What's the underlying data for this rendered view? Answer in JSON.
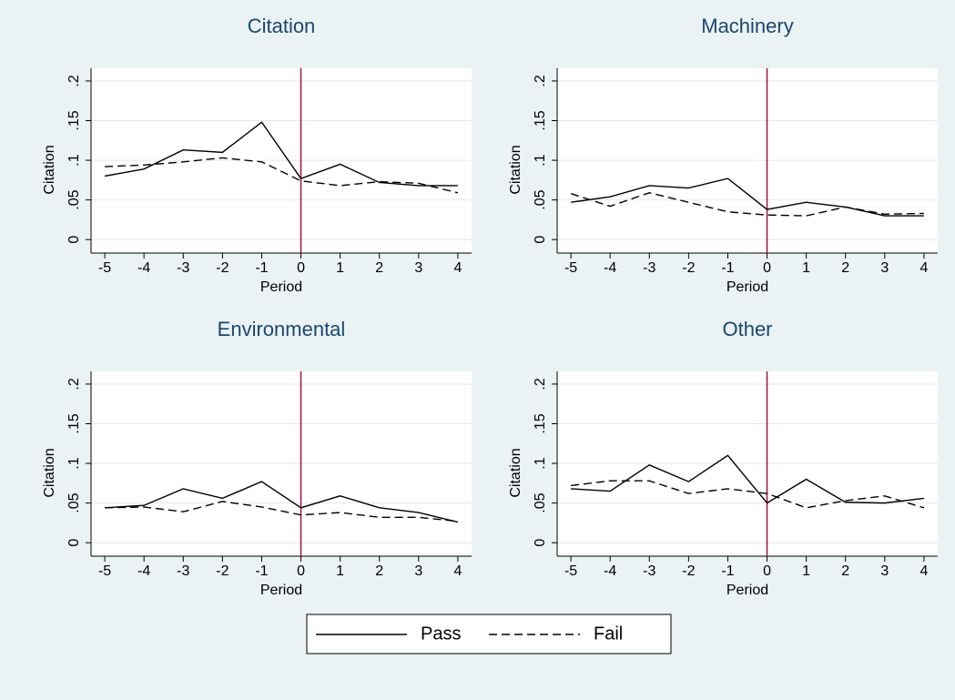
{
  "chart_data": [
    {
      "type": "line",
      "title": "Citation",
      "xlabel": "Period",
      "ylabel": "Citation",
      "x": [
        -5,
        -4,
        -3,
        -2,
        -1,
        0,
        1,
        2,
        3,
        4
      ],
      "xticks": [
        -5,
        -4,
        -3,
        -2,
        -1,
        0,
        1,
        2,
        3,
        4
      ],
      "xlim": [
        -5.35,
        4.35
      ],
      "ylim": [
        -0.017,
        0.216
      ],
      "yticks": [
        0,
        {
          "value": 0.05,
          "label": ".05"
        },
        {
          "value": 0.1,
          "label": ".1"
        },
        {
          "value": 0.15,
          "label": ".15"
        },
        {
          "value": 0.2,
          "label": ".2"
        }
      ],
      "grid": true,
      "vline": 0,
      "vline_color": "#a0143c",
      "series": [
        {
          "color": "#000000",
          "dash": "solid",
          "values": [
            0.08,
            0.089,
            0.113,
            0.11,
            0.148,
            0.077,
            0.095,
            0.072,
            0.068,
            0.068
          ]
        },
        {
          "color": "#000000",
          "dash": "dashed",
          "values": [
            0.092,
            0.094,
            0.098,
            0.103,
            0.098,
            0.074,
            0.068,
            0.073,
            0.071,
            0.059
          ]
        }
      ]
    },
    {
      "type": "line",
      "title": "Machinery",
      "xlabel": "Period",
      "ylabel": "Citation",
      "x": [
        -5,
        -4,
        -3,
        -2,
        -1,
        0,
        1,
        2,
        3,
        4
      ],
      "xticks": [
        -5,
        -4,
        -3,
        -2,
        -1,
        0,
        1,
        2,
        3,
        4
      ],
      "xlim": [
        -5.35,
        4.35
      ],
      "ylim": [
        -0.017,
        0.216
      ],
      "yticks": [
        0,
        {
          "value": 0.05,
          "label": ".05"
        },
        {
          "value": 0.1,
          "label": ".1"
        },
        {
          "value": 0.15,
          "label": ".15"
        },
        {
          "value": 0.2,
          "label": ".2"
        }
      ],
      "grid": true,
      "vline": 0,
      "vline_color": "#a0143c",
      "series": [
        {
          "color": "#000000",
          "dash": "solid",
          "values": [
            0.047,
            0.054,
            0.068,
            0.065,
            0.077,
            0.038,
            0.047,
            0.041,
            0.03,
            0.03
          ]
        },
        {
          "color": "#000000",
          "dash": "dashed",
          "values": [
            0.058,
            0.042,
            0.059,
            0.047,
            0.035,
            0.031,
            0.03,
            0.041,
            0.032,
            0.033
          ]
        }
      ]
    },
    {
      "type": "line",
      "title": "Environmental",
      "xlabel": "Period",
      "ylabel": "Citation",
      "x": [
        -5,
        -4,
        -3,
        -2,
        -1,
        0,
        1,
        2,
        3,
        4
      ],
      "xticks": [
        -5,
        -4,
        -3,
        -2,
        -1,
        0,
        1,
        2,
        3,
        4
      ],
      "xlim": [
        -5.35,
        4.35
      ],
      "ylim": [
        -0.017,
        0.216
      ],
      "yticks": [
        0,
        {
          "value": 0.05,
          "label": ".05"
        },
        {
          "value": 0.1,
          "label": ".1"
        },
        {
          "value": 0.15,
          "label": ".15"
        },
        {
          "value": 0.2,
          "label": ".2"
        }
      ],
      "grid": true,
      "vline": 0,
      "vline_color": "#a0143c",
      "series": [
        {
          "color": "#000000",
          "dash": "solid",
          "values": [
            0.044,
            0.047,
            0.068,
            0.056,
            0.077,
            0.044,
            0.059,
            0.044,
            0.038,
            0.026
          ]
        },
        {
          "color": "#000000",
          "dash": "dashed",
          "values": [
            0.044,
            0.045,
            0.039,
            0.052,
            0.045,
            0.035,
            0.038,
            0.032,
            0.032,
            0.027
          ]
        }
      ]
    },
    {
      "type": "line",
      "title": "Other",
      "xlabel": "Period",
      "ylabel": "Citation",
      "x": [
        -5,
        -4,
        -3,
        -2,
        -1,
        0,
        1,
        2,
        3,
        4
      ],
      "xticks": [
        -5,
        -4,
        -3,
        -2,
        -1,
        0,
        1,
        2,
        3,
        4
      ],
      "xlim": [
        -5.35,
        4.35
      ],
      "ylim": [
        -0.017,
        0.216
      ],
      "yticks": [
        0,
        {
          "value": 0.05,
          "label": ".05"
        },
        {
          "value": 0.1,
          "label": ".1"
        },
        {
          "value": 0.15,
          "label": ".15"
        },
        {
          "value": 0.2,
          "label": ".2"
        }
      ],
      "grid": true,
      "vline": 0,
      "vline_color": "#a0143c",
      "series": [
        {
          "color": "#000000",
          "dash": "solid",
          "values": [
            0.068,
            0.065,
            0.098,
            0.077,
            0.11,
            0.05,
            0.08,
            0.051,
            0.05,
            0.056
          ]
        },
        {
          "color": "#000000",
          "dash": "dashed",
          "values": [
            0.072,
            0.078,
            0.078,
            0.062,
            0.068,
            0.062,
            0.044,
            0.053,
            0.059,
            0.044
          ]
        }
      ]
    }
  ],
  "legend": {
    "position": "bottom",
    "series": [
      {
        "name": "Pass",
        "dash": "solid"
      },
      {
        "name": "Fail",
        "dash": "dashed"
      }
    ]
  }
}
